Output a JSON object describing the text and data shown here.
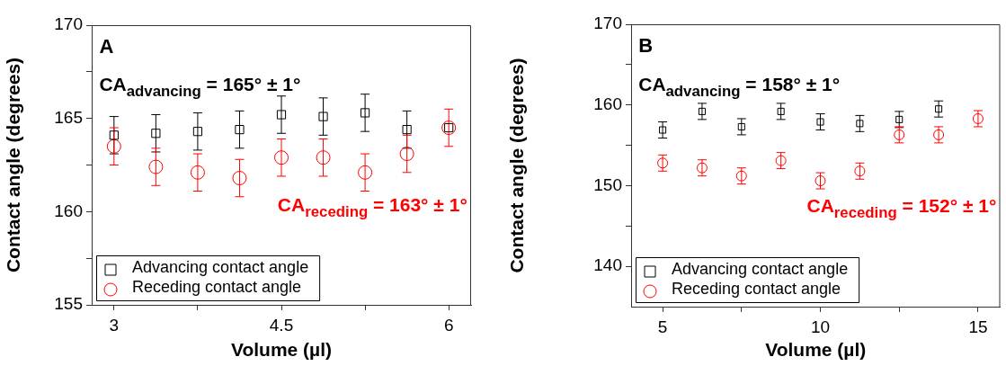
{
  "chart_data": [
    {
      "type": "scatter",
      "xlabel": "Volume (µl)",
      "ylabel": "Contact angle (degrees)",
      "xlim": [
        2.8,
        6.2
      ],
      "xticks": [
        3.0,
        {
          "value": 3.75,
          "label": null
        },
        4.5,
        {
          "value": 5.25,
          "label": null
        },
        6.0
      ],
      "ylim": [
        155,
        170
      ],
      "yticks": [
        155,
        {
          "value": 157.5,
          "label": null
        },
        160,
        {
          "value": 162.5,
          "label": null
        },
        165,
        {
          "value": 167.5,
          "label": null
        },
        170
      ],
      "grid": false,
      "legend": "bottom left",
      "x": [
        3.0,
        3.375,
        3.75,
        4.125,
        4.5,
        4.875,
        5.25,
        5.625,
        6.0
      ],
      "series": [
        {
          "name": "Advancing contact angle",
          "color": "#000000",
          "marker": "square",
          "values": [
            164.1,
            164.2,
            164.3,
            164.4,
            165.2,
            165.1,
            165.3,
            164.4,
            164.5
          ],
          "errors": [
            1,
            1,
            1,
            1,
            1,
            1,
            1,
            1,
            null
          ]
        },
        {
          "name": "Receding contact angle",
          "color": "#ff0000",
          "marker": "circle",
          "values": [
            163.5,
            162.4,
            162.1,
            161.8,
            162.9,
            162.9,
            162.1,
            163.1,
            164.5
          ],
          "errors": [
            1,
            1,
            1,
            1,
            1,
            1,
            1,
            1,
            1
          ]
        }
      ],
      "annotations": [
        "A",
        "CA$_{advancing}$ = 165° ± 1°",
        "CA$_{receding}$ = 163° ± 1°"
      ]
    },
    {
      "type": "scatter",
      "xlabel": "Volume (µl)",
      "ylabel": "Contact angle (degrees)",
      "xlim": [
        4,
        15.7
      ],
      "xticks": [
        5,
        {
          "value": 7.5,
          "label": null
        },
        10,
        {
          "value": 12.5,
          "label": null
        },
        15
      ],
      "ylim": [
        135,
        170
      ],
      "yticks": [
        140,
        {
          "value": 145,
          "label": null
        },
        150,
        {
          "value": 155,
          "label": null
        },
        160,
        {
          "value": 165,
          "label": null
        },
        170
      ],
      "grid": false,
      "legend": "bottom left",
      "x": [
        5,
        6.25,
        7.5,
        8.75,
        10,
        11.25,
        12.5,
        13.75,
        15
      ],
      "series": [
        {
          "name": "Advancing contact angle",
          "color": "#000000",
          "marker": "square",
          "values": [
            156.9,
            159.2,
            157.3,
            159.2,
            157.9,
            157.7,
            158.2,
            159.5,
            null
          ],
          "errors": [
            1,
            1,
            1,
            1,
            1,
            1,
            1,
            1,
            null
          ]
        },
        {
          "name": "Receding contact angle",
          "color": "#ff0000",
          "marker": "circle",
          "values": [
            152.8,
            152.2,
            151.2,
            153.1,
            150.6,
            151.8,
            156.3,
            156.3,
            158.3
          ],
          "errors": [
            1,
            1,
            1,
            1,
            1,
            1,
            1,
            1,
            1
          ]
        }
      ],
      "annotations": [
        "B",
        "CA$_{advancing}$ = 158° ± 1°",
        "CA$_{receding}$ = 152° ± 1°"
      ]
    }
  ]
}
